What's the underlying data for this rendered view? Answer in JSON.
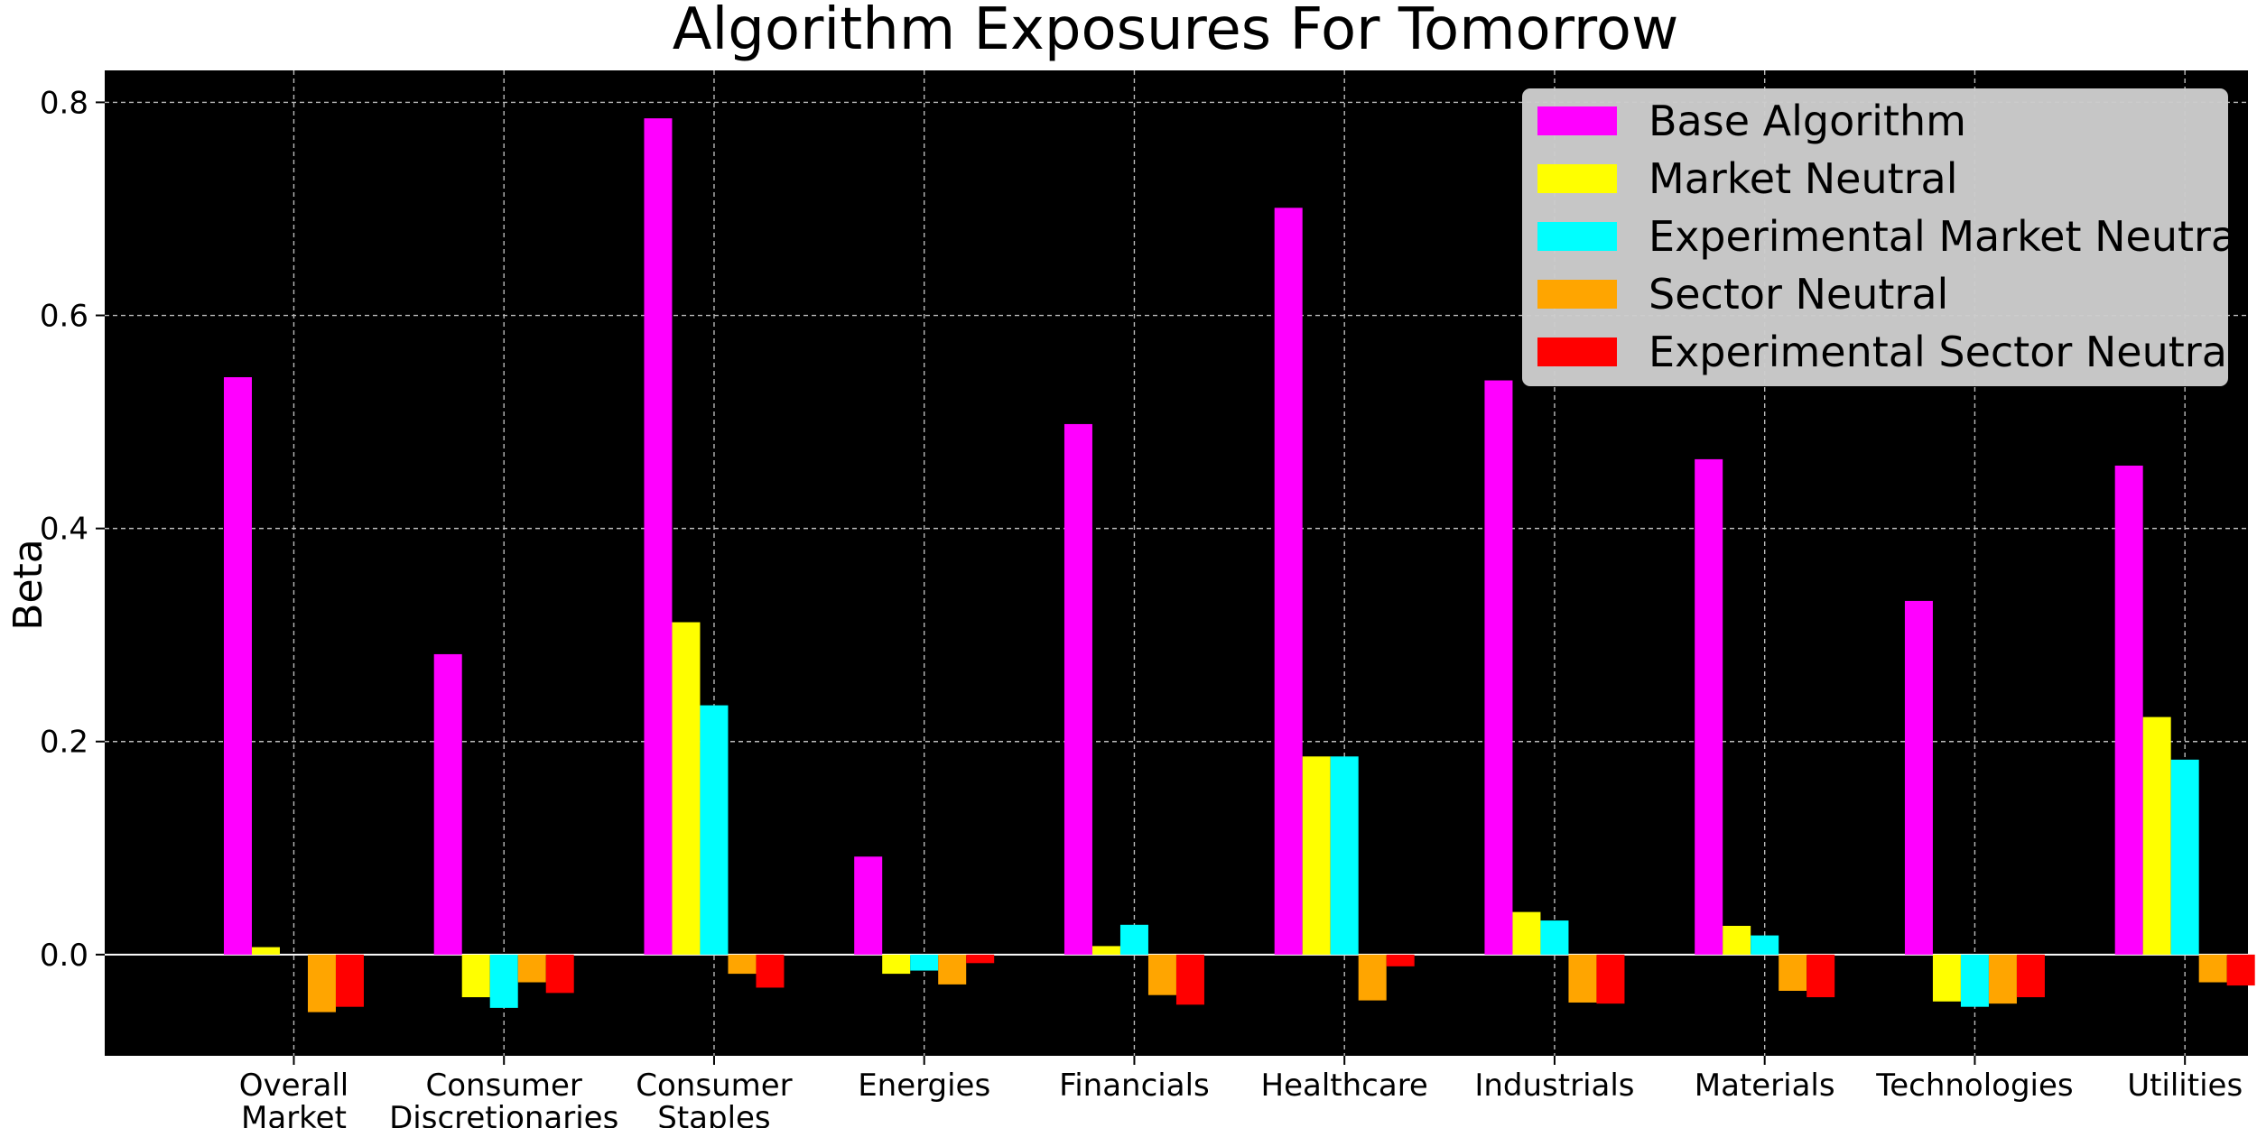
{
  "chart_data": {
    "type": "bar",
    "title": "Algorithm Exposures For Tomorrow",
    "xlabel": "",
    "ylabel": "Beta",
    "ylim": [
      -0.095,
      0.83
    ],
    "yticks": [
      0.0,
      0.2,
      0.4,
      0.6,
      0.8
    ],
    "ytick_labels": [
      "0.0",
      "0.2",
      "0.4",
      "0.6",
      "0.8"
    ],
    "grid": true,
    "background": "#000000",
    "legend_position": "top-right",
    "categories": [
      [
        "Overall",
        "Market"
      ],
      [
        "Consumer",
        "Discretionaries"
      ],
      [
        "Consumer",
        "Staples"
      ],
      [
        "Energies"
      ],
      [
        "Financials"
      ],
      [
        "Healthcare"
      ],
      [
        "Industrials"
      ],
      [
        "Materials"
      ],
      [
        "Technologies"
      ],
      [
        "Utilities"
      ]
    ],
    "series": [
      {
        "name": "Base Algorithm",
        "color": "#ff00ff",
        "values": [
          0.542,
          0.282,
          0.785,
          0.092,
          0.498,
          0.701,
          0.539,
          0.465,
          0.332,
          0.459
        ]
      },
      {
        "name": "Market Neutral",
        "color": "#ffff00",
        "values": [
          0.007,
          -0.04,
          0.312,
          -0.018,
          0.008,
          0.186,
          0.04,
          0.027,
          -0.044,
          0.223
        ]
      },
      {
        "name": "Experimental Market Neutral",
        "color": "#00ffff",
        "values": [
          0.0,
          -0.05,
          0.234,
          -0.015,
          0.028,
          0.186,
          0.032,
          0.018,
          -0.049,
          0.183
        ]
      },
      {
        "name": "Sector Neutral",
        "color": "#ffa500",
        "values": [
          -0.054,
          -0.026,
          -0.018,
          -0.028,
          -0.038,
          -0.043,
          -0.045,
          -0.034,
          -0.046,
          -0.026
        ]
      },
      {
        "name": "Experimental Sector Neutral",
        "color": "#ff0000",
        "values": [
          -0.049,
          -0.036,
          -0.031,
          -0.008,
          -0.047,
          -0.011,
          -0.046,
          -0.04,
          -0.04,
          -0.029
        ]
      }
    ]
  }
}
